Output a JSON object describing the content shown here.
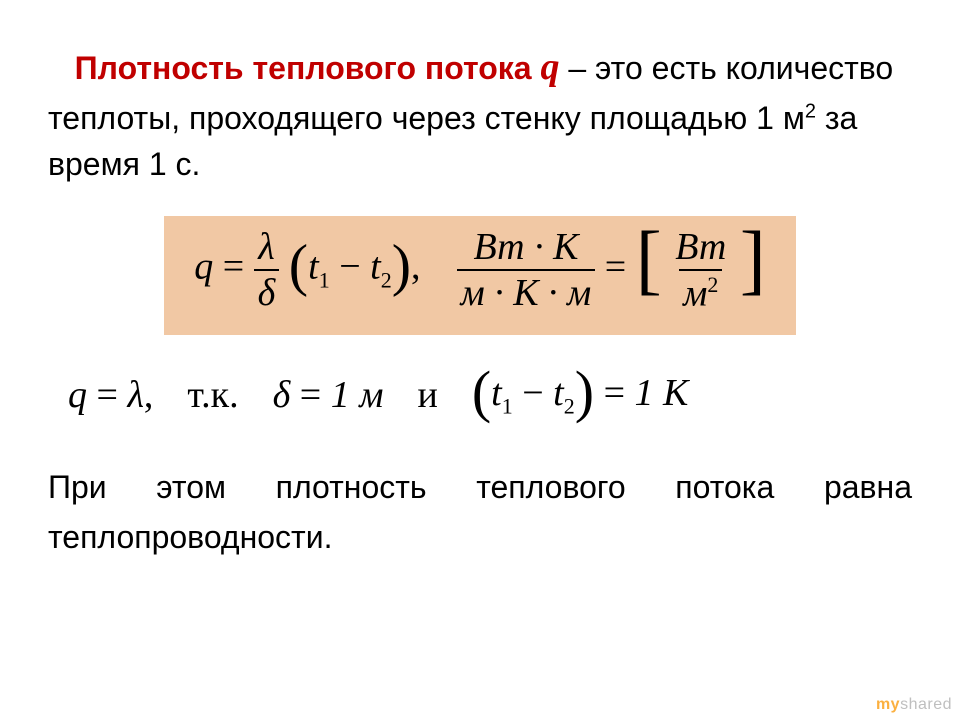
{
  "definition": {
    "term": "Плотность теплового потока",
    "symbol": "q",
    "dash": " – ",
    "rest": "это есть количество теплоты, проходящего через стенку площадью 1 м",
    "area_exp": "2",
    "tail": " за время 1 с."
  },
  "formula1": {
    "background_color": "#f1c8a4",
    "text_color": "#000000",
    "font": "Times New Roman",
    "lhs_symbol": "q",
    "eq": "=",
    "frac1_num": "λ",
    "frac1_den": "δ",
    "diff_t1": "t",
    "diff_s1": "1",
    "diff_minus": " − ",
    "diff_t2": "t",
    "diff_s2": "2",
    "comma": ",",
    "units_num": "Вт · К",
    "units_den": "м · К · м",
    "result_num": "Вт",
    "result_den_base": "м",
    "result_den_exp": "2"
  },
  "formula2": {
    "lhs": "q",
    "eq": "=",
    "rhs": "λ",
    "comma": ",",
    "because": "т.к.",
    "delta": "δ",
    "delta_val": "1 м",
    "and": "и",
    "dt_t1": "t",
    "dt_s1": "1",
    "dt_minus": " − ",
    "dt_t2": "t",
    "dt_s2": "2",
    "dt_val": "1 К"
  },
  "conclusion": "При этом плотность теплового потока равна теплопроводности.",
  "watermark": {
    "my": "my",
    "shared": "shared"
  },
  "colors": {
    "accent": "#c00000",
    "highlight": "#f1c8a4",
    "bg": "#ffffff"
  }
}
